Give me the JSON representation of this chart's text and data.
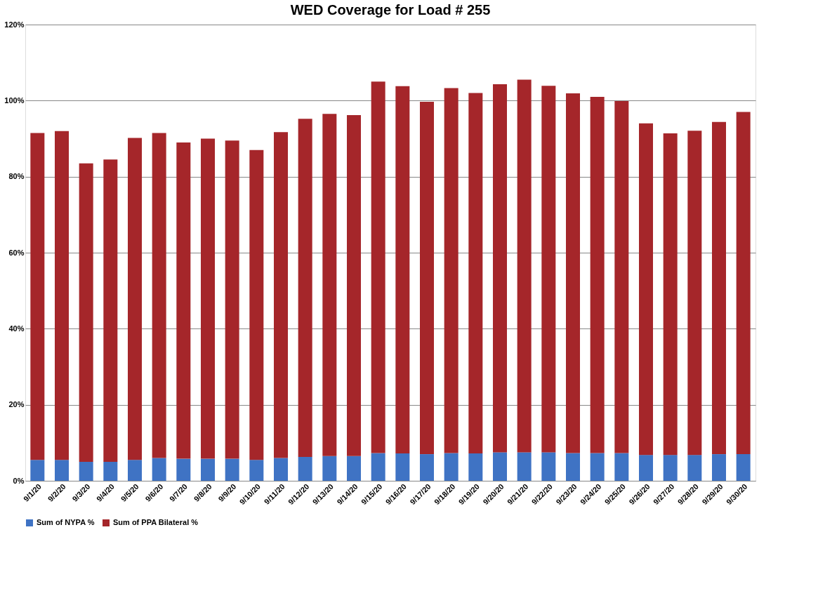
{
  "chart_data": {
    "type": "bar",
    "stacked": true,
    "title": "WED Coverage for Load # 255",
    "categories": [
      "9/1/20",
      "9/2/20",
      "9/3/20",
      "9/4/20",
      "9/5/20",
      "9/6/20",
      "9/7/20",
      "9/8/20",
      "9/9/20",
      "9/10/20",
      "9/11/20",
      "9/12/20",
      "9/13/20",
      "9/14/20",
      "9/15/20",
      "9/16/20",
      "9/17/20",
      "9/18/20",
      "9/19/20",
      "9/20/20",
      "9/21/20",
      "9/22/20",
      "9/23/20",
      "9/24/20",
      "9/25/20",
      "9/26/20",
      "9/27/20",
      "9/28/20",
      "9/29/20",
      "9/30/20"
    ],
    "series": [
      {
        "name": "Sum of NYPA %",
        "color": "#3f73c4",
        "values": [
          5.5,
          5.5,
          5,
          5,
          5.5,
          6,
          5.8,
          5.8,
          5.8,
          5.5,
          6,
          6.3,
          6.5,
          6.5,
          7.3,
          7.2,
          7,
          7.3,
          7.2,
          7.5,
          7.5,
          7.5,
          7.3,
          7.3,
          7.3,
          6.8,
          6.8,
          6.8,
          7,
          7
        ]
      },
      {
        "name": "Sum of PPA Bilateral %",
        "color": "#a5262a",
        "values": [
          86.0,
          86.5,
          78.5,
          79.5,
          84.7,
          85.5,
          83.2,
          84.2,
          83.7,
          81.5,
          85.7,
          88.9,
          90.0,
          89.7,
          97.7,
          96.6,
          92.7,
          96.0,
          94.8,
          96.8,
          98.0,
          96.4,
          94.6,
          93.7,
          92.6,
          87.2,
          84.6,
          85.3,
          87.4,
          90.0
        ]
      }
    ],
    "ylim": [
      0,
      120
    ],
    "yticks": [
      {
        "value": 0,
        "label": "0%"
      },
      {
        "value": 20,
        "label": "20%"
      },
      {
        "value": 40,
        "label": "40%"
      },
      {
        "value": 60,
        "label": "60%"
      },
      {
        "value": 80,
        "label": "80%"
      },
      {
        "value": 100,
        "label": "100%"
      },
      {
        "value": 120,
        "label": "120%"
      }
    ],
    "grid": "y",
    "legend": "bottom"
  }
}
